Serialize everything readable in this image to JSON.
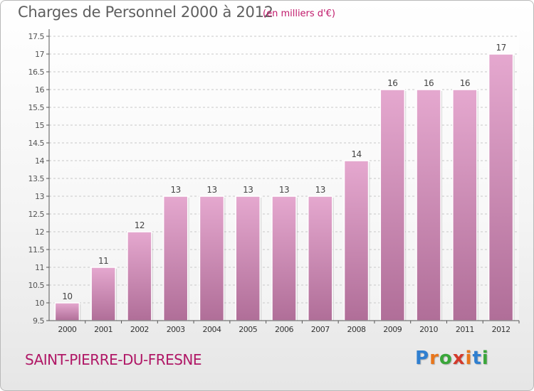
{
  "header": {
    "title": "Charges de Personnel 2000 à 2012",
    "unit": "(en milliers d'€)"
  },
  "footer": {
    "commune": "SAINT-PIERRE-DU-FRESNE"
  },
  "logo": {
    "text": "Proxiti",
    "letter_colors": [
      "#2f7fd0",
      "#e8761c",
      "#3aa63a",
      "#d33a2c",
      "#e8761c",
      "#2f7fd0",
      "#3aa63a"
    ]
  },
  "colors": {
    "title": "#5f5f5f",
    "accent": "#b01766",
    "bar_top": "#e5a8cf",
    "bar_bottom": "#b06e98"
  },
  "chart_data": {
    "type": "bar",
    "title": "Charges de Personnel 2000 à 2012",
    "subtitle": "(en milliers d'€)",
    "categories": [
      "2000",
      "2001",
      "2002",
      "2003",
      "2004",
      "2005",
      "2006",
      "2007",
      "2008",
      "2009",
      "2010",
      "2011",
      "2012"
    ],
    "values": [
      10,
      11,
      12,
      13,
      13,
      13,
      13,
      13,
      14,
      16,
      16,
      16,
      17
    ],
    "data_labels": [
      "10",
      "11",
      "12",
      "13",
      "13",
      "13",
      "13",
      "13",
      "14",
      "16",
      "16",
      "16",
      "17"
    ],
    "ylim": [
      9.5,
      17.5
    ],
    "yticks": [
      9.5,
      10,
      10.5,
      11,
      11.5,
      12,
      12.5,
      13,
      13.5,
      14,
      14.5,
      15,
      15.5,
      16,
      16.5,
      17,
      17.5
    ],
    "ytick_labels": [
      "9.5",
      "10",
      "10.5",
      "11",
      "11.5",
      "12",
      "12.5",
      "13",
      "13.5",
      "14",
      "14.5",
      "15",
      "15.5",
      "16",
      "16.5",
      "17",
      "17.5"
    ],
    "grid": "horizontal dashed",
    "legend": "none"
  }
}
